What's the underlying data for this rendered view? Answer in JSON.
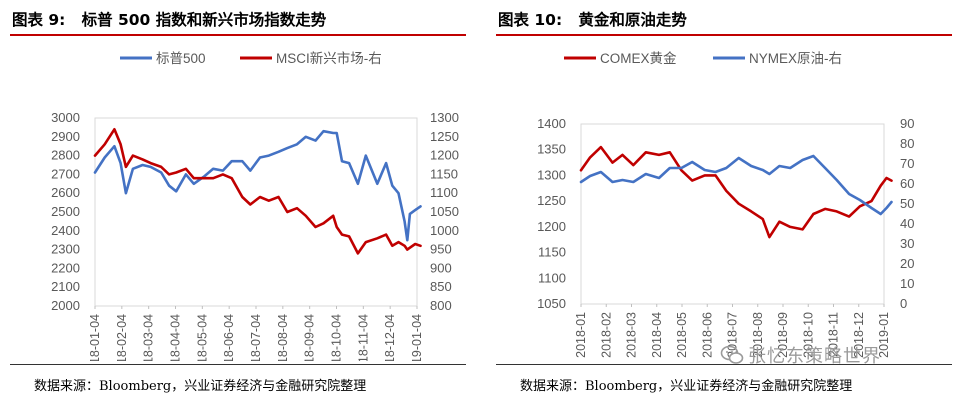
{
  "watermark": {
    "text": "张忆东策略世界",
    "icon": "wechat-bubble-icon"
  },
  "chart_data": [
    {
      "type": "line",
      "title": "图表 9:   标普 500 指数和新兴市场指数走势",
      "source": "数据来源：Bloomberg，兴业证券经济与金融研究院整理",
      "ylim": [
        2000,
        3000
      ],
      "y2lim": [
        800,
        1300
      ],
      "yticks": [
        "3000",
        "2900",
        "2800",
        "2700",
        "2600",
        "2500",
        "2400",
        "2300",
        "2200",
        "2100",
        "2000"
      ],
      "y2ticks": [
        "1300",
        "1250",
        "1200",
        "1150",
        "1100",
        "1050",
        "1000",
        "950",
        "900",
        "850",
        "800"
      ],
      "xticks": [
        "2018-01-04",
        "2018-02-04",
        "2018-03-04",
        "2018-04-04",
        "2018-05-04",
        "2018-06-04",
        "2018-07-04",
        "2018-08-04",
        "2018-09-04",
        "2018-10-04",
        "2018-11-04",
        "2018-12-04",
        "2019-01-04"
      ],
      "legend_position": "top-center",
      "series": [
        {
          "name": "标普500",
          "axis": "left",
          "color": "#4472c4",
          "x": [
            "2018-01-04",
            "2018-01-15",
            "2018-01-26",
            "2018-02-02",
            "2018-02-08",
            "2018-02-16",
            "2018-02-27",
            "2018-03-08",
            "2018-03-20",
            "2018-03-29",
            "2018-04-06",
            "2018-04-17",
            "2018-04-26",
            "2018-05-08",
            "2018-05-18",
            "2018-05-29",
            "2018-06-08",
            "2018-06-20",
            "2018-06-29",
            "2018-07-10",
            "2018-07-20",
            "2018-07-31",
            "2018-08-10",
            "2018-08-21",
            "2018-08-31",
            "2018-09-11",
            "2018-09-20",
            "2018-10-01",
            "2018-10-05",
            "2018-10-11",
            "2018-10-19",
            "2018-10-29",
            "2018-11-07",
            "2018-11-20",
            "2018-11-30",
            "2018-12-07",
            "2018-12-14",
            "2018-12-21",
            "2018-12-24",
            "2018-12-27",
            "2019-01-02",
            "2019-01-08"
          ],
          "values": [
            2710,
            2790,
            2850,
            2760,
            2600,
            2730,
            2750,
            2740,
            2710,
            2640,
            2610,
            2700,
            2650,
            2690,
            2730,
            2720,
            2770,
            2770,
            2720,
            2790,
            2800,
            2820,
            2840,
            2860,
            2900,
            2880,
            2930,
            2920,
            2920,
            2770,
            2760,
            2650,
            2800,
            2650,
            2760,
            2640,
            2600,
            2450,
            2350,
            2490,
            2510,
            2530
          ]
        },
        {
          "name": "MSCI新兴市场-右",
          "axis": "right",
          "color": "#c00000",
          "x": [
            "2018-01-04",
            "2018-01-15",
            "2018-01-26",
            "2018-02-02",
            "2018-02-08",
            "2018-02-16",
            "2018-02-27",
            "2018-03-08",
            "2018-03-20",
            "2018-03-29",
            "2018-04-06",
            "2018-04-17",
            "2018-04-26",
            "2018-05-08",
            "2018-05-18",
            "2018-05-29",
            "2018-06-08",
            "2018-06-20",
            "2018-06-29",
            "2018-07-10",
            "2018-07-20",
            "2018-07-31",
            "2018-08-10",
            "2018-08-21",
            "2018-08-31",
            "2018-09-11",
            "2018-09-20",
            "2018-10-01",
            "2018-10-05",
            "2018-10-11",
            "2018-10-19",
            "2018-10-29",
            "2018-11-07",
            "2018-11-20",
            "2018-11-30",
            "2018-12-07",
            "2018-12-14",
            "2018-12-21",
            "2018-12-24",
            "2018-12-27",
            "2019-01-02",
            "2019-01-08"
          ],
          "values": [
            1200,
            1230,
            1270,
            1230,
            1170,
            1200,
            1190,
            1180,
            1170,
            1150,
            1155,
            1165,
            1140,
            1140,
            1140,
            1150,
            1140,
            1090,
            1070,
            1090,
            1080,
            1090,
            1050,
            1060,
            1040,
            1010,
            1020,
            1040,
            1010,
            990,
            985,
            940,
            970,
            980,
            990,
            960,
            970,
            960,
            950,
            955,
            965,
            960
          ]
        }
      ]
    },
    {
      "type": "line",
      "title": "图表 10:   黄金和原油走势",
      "source": "数据来源：Bloomberg，兴业证券经济与金融研究院整理",
      "ylim": [
        1050,
        1400
      ],
      "y2lim": [
        0,
        90
      ],
      "yticks": [
        "1400",
        "1350",
        "1300",
        "1250",
        "1200",
        "1150",
        "1100",
        "1050"
      ],
      "y2ticks": [
        "90",
        "80",
        "70",
        "60",
        "50",
        "40",
        "30",
        "20",
        "10",
        "0"
      ],
      "xticks": [
        "2018-01",
        "2018-02",
        "2018-03",
        "2018-04",
        "2018-05",
        "2018-06",
        "2018-07",
        "2018-08",
        "2018-09",
        "2018-10",
        "2018-11",
        "2018-12",
        "2019-01"
      ],
      "legend_position": "top-center",
      "series": [
        {
          "name": "COMEX黄金",
          "axis": "left",
          "color": "#c00000",
          "x": [
            "2018-01-01",
            "2018-01-12",
            "2018-01-25",
            "2018-02-08",
            "2018-02-20",
            "2018-03-05",
            "2018-03-20",
            "2018-04-05",
            "2018-04-18",
            "2018-05-02",
            "2018-05-15",
            "2018-05-30",
            "2018-06-12",
            "2018-06-25",
            "2018-07-10",
            "2018-07-25",
            "2018-08-08",
            "2018-08-16",
            "2018-08-28",
            "2018-09-10",
            "2018-09-25",
            "2018-10-08",
            "2018-10-22",
            "2018-11-05",
            "2018-11-20",
            "2018-12-03",
            "2018-12-17",
            "2018-12-28",
            "2019-01-04",
            "2019-01-10"
          ],
          "values": [
            1310,
            1335,
            1355,
            1325,
            1340,
            1320,
            1345,
            1340,
            1345,
            1310,
            1290,
            1300,
            1300,
            1270,
            1245,
            1230,
            1215,
            1180,
            1210,
            1200,
            1195,
            1225,
            1235,
            1230,
            1220,
            1240,
            1250,
            1280,
            1295,
            1290
          ]
        },
        {
          "name": "NYMEX原油-右",
          "axis": "right",
          "color": "#4472c4",
          "x": [
            "2018-01-01",
            "2018-01-12",
            "2018-01-25",
            "2018-02-08",
            "2018-02-20",
            "2018-03-05",
            "2018-03-20",
            "2018-04-05",
            "2018-04-18",
            "2018-05-02",
            "2018-05-15",
            "2018-05-30",
            "2018-06-12",
            "2018-06-25",
            "2018-07-10",
            "2018-07-25",
            "2018-08-08",
            "2018-08-16",
            "2018-08-28",
            "2018-09-10",
            "2018-09-25",
            "2018-10-08",
            "2018-10-22",
            "2018-11-05",
            "2018-11-20",
            "2018-12-03",
            "2018-12-17",
            "2018-12-28",
            "2019-01-04",
            "2019-01-10"
          ],
          "values": [
            61,
            64,
            66,
            61,
            62,
            61,
            65,
            63,
            68,
            68,
            71,
            67,
            66,
            68,
            73,
            69,
            67,
            65,
            69,
            68,
            72,
            74,
            68,
            62,
            55,
            52,
            48,
            45,
            48,
            51
          ]
        }
      ]
    }
  ]
}
